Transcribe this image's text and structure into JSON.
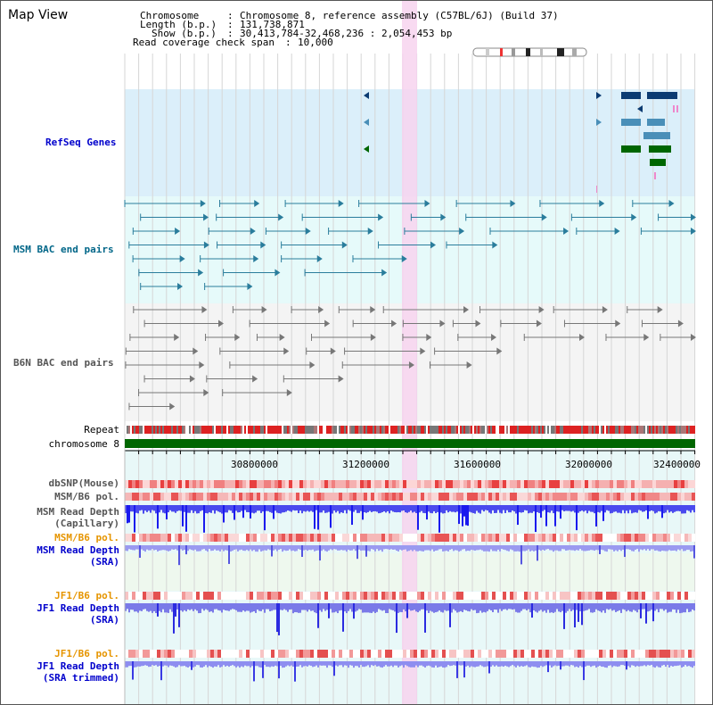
{
  "view_title": "Map View",
  "header": {
    "chromosome_label": "Chromosome",
    "chromosome_value": "Chromosome 8, reference assembly (C57BL/6J) (Build 37)",
    "length_label": "Length (b.p.)",
    "length_value": "131,738,871",
    "show_label": "Show (b.p.)",
    "show_value": "30,413,784-32,468,236 : 2,054,453 bp",
    "coverage_label": "Read coverage check span",
    "coverage_value": "10,000"
  },
  "tracks": {
    "refseq": "RefSeq Genes",
    "msm_bac": "MSM BAC end pairs",
    "b6n_bac": "B6N BAC end pairs",
    "repeat": "Repeat",
    "chromosome": "chromosome 8",
    "dbsnp": "dbSNP(Mouse)",
    "msm_b6_pol_1": "MSM/B6 pol.",
    "msm_depth_cap_1": "MSM Read Depth",
    "msm_depth_cap_2": "(Capillary)",
    "msm_b6_pol_2": "MSM/B6 pol.",
    "msm_depth_sra_1": "MSM Read Depth",
    "msm_depth_sra_2": "(SRA)",
    "jf1_b6_pol_1": "JF1/B6 pol.",
    "jf1_depth_sra_1": "JF1 Read Depth",
    "jf1_depth_sra_2": "(SRA)",
    "jf1_b6_pol_2": "JF1/B6 pol.",
    "jf1_depth_trim_1": "JF1 Read Depth",
    "jf1_depth_trim_2": "(SRA trimmed)"
  },
  "axis": {
    "ticks": [
      "30800000",
      "31200000",
      "31600000",
      "32000000",
      "32400000"
    ]
  },
  "colors": {
    "label_blue": "#0000cc",
    "label_teal": "#006688",
    "label_orange": "#e69500",
    "refseq_bg": "#dbeffa",
    "bac_bg": "#e6fafa",
    "gray_bg": "#f4f4f4",
    "highlight": "#f7d4ef",
    "chromosome_bar": "#006600",
    "depth_blue": "#1a1aee"
  }
}
